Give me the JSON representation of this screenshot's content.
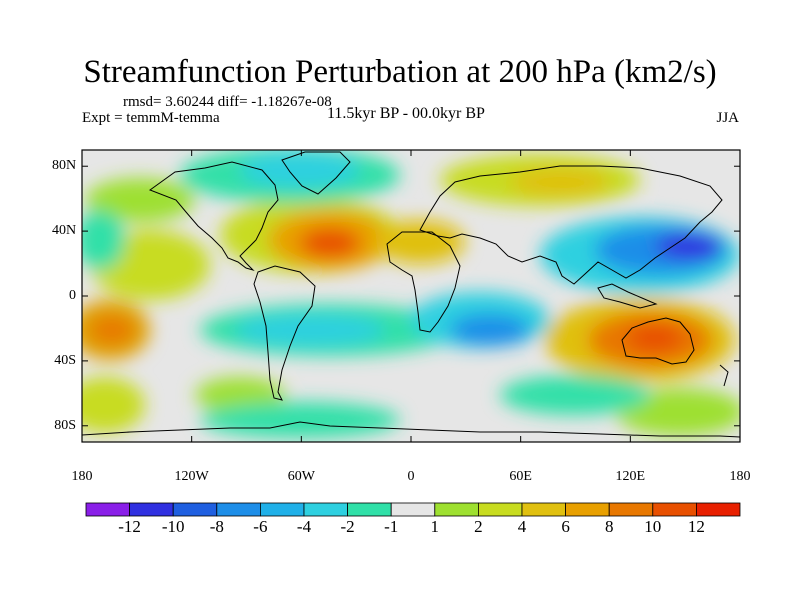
{
  "title": "Streamfunction Perturbation at 200 hPa (km2/s)",
  "stats": "rmsd= 3.60244  diff= -1.18267e-08",
  "experiment": "Expt = temmM-temma",
  "period": "11.5kyr BP - 00.0kyr BP",
  "season": "JJA",
  "map": {
    "lon_range": [
      -180,
      180
    ],
    "lat_range": [
      -90,
      90
    ],
    "y_ticks": [
      {
        "label": "80N",
        "lat": 80
      },
      {
        "label": "40N",
        "lat": 40
      },
      {
        "label": "0",
        "lat": 0
      },
      {
        "label": "40S",
        "lat": -40
      },
      {
        "label": "80S",
        "lat": -80
      }
    ],
    "x_ticks": [
      {
        "label": "180",
        "lon": -180
      },
      {
        "label": "120W",
        "lon": -120
      },
      {
        "label": "60W",
        "lon": -60
      },
      {
        "label": "0",
        "lon": 0
      },
      {
        "label": "60E",
        "lon": 60
      },
      {
        "label": "120E",
        "lon": 120
      },
      {
        "label": "180",
        "lon": 180
      }
    ]
  },
  "colorbar": {
    "colors": [
      "#8a1fe8",
      "#3030e0",
      "#1f5fe0",
      "#1e8ee8",
      "#20b0e8",
      "#2ed0e0",
      "#30e0a8",
      "#e6e6e6",
      "#9ee030",
      "#c8dc20",
      "#e0c010",
      "#e8a000",
      "#e87800",
      "#e85000",
      "#e82000"
    ],
    "labels": [
      "-12",
      "-10",
      "-8",
      "-6",
      "-4",
      "-2",
      "-1",
      "1",
      "2",
      "4",
      "6",
      "8",
      "10",
      "12"
    ]
  }
}
